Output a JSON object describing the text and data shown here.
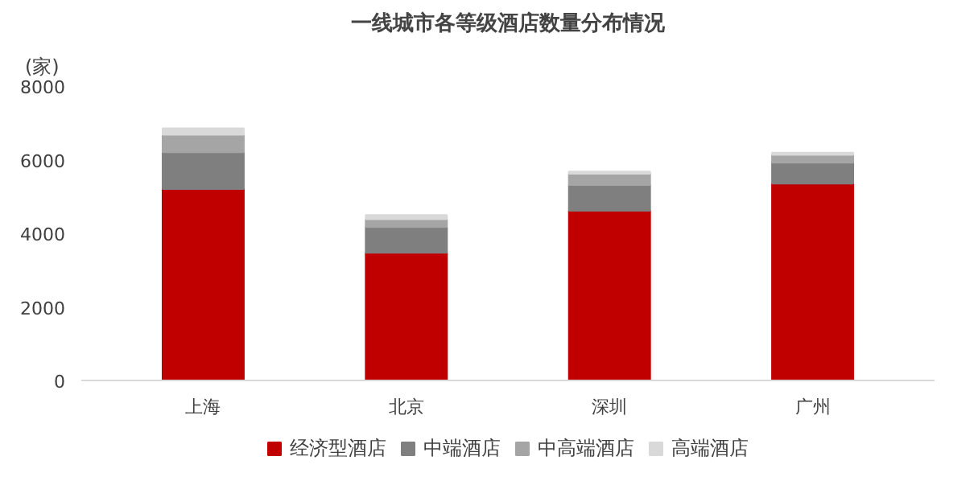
{
  "chart_data": {
    "type": "bar",
    "title": "一线城市各等级酒店数量分布情况",
    "ylabel": "(家)",
    "categories": [
      "上海",
      "北京",
      "深圳",
      "广州"
    ],
    "stacked": true,
    "series": [
      {
        "name": "经济型酒店",
        "color": "#c00000",
        "values": [
          5200,
          3470,
          4610,
          5350
        ]
      },
      {
        "name": "中端酒店",
        "color": "#7f7f7f",
        "values": [
          1000,
          700,
          700,
          570
        ]
      },
      {
        "name": "中高端酒店",
        "color": "#a5a5a5",
        "values": [
          480,
          210,
          310,
          210
        ]
      },
      {
        "name": "高端酒店",
        "color": "#d9d9d9",
        "values": [
          170,
          120,
          60,
          60
        ]
      }
    ],
    "ylim": [
      0,
      8000
    ],
    "yticks": [
      0,
      2000,
      4000,
      6000,
      8000
    ],
    "grid": false,
    "legend": "bottom"
  }
}
